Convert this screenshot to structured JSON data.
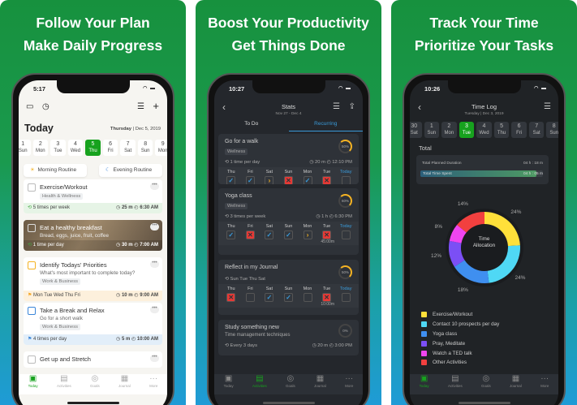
{
  "panels": [
    {
      "headline": [
        "Follow Your Plan",
        "Make Daily Progress"
      ],
      "status_time": "5:17",
      "page_title": "Today",
      "date_bold": "Thursday",
      "date_rest": " | Dec 5, 2019",
      "days": [
        {
          "num": "1",
          "wd": "Sun"
        },
        {
          "num": "2",
          "wd": "Mon"
        },
        {
          "num": "3",
          "wd": "Tue"
        },
        {
          "num": "4",
          "wd": "Wed"
        },
        {
          "num": "5",
          "wd": "Thu",
          "selected": true
        },
        {
          "num": "6",
          "wd": "Fri"
        },
        {
          "num": "7",
          "wd": "Sat"
        },
        {
          "num": "8",
          "wd": "Sun"
        },
        {
          "num": "9",
          "wd": "Mon"
        }
      ],
      "routines": {
        "morning": "Morning Routine",
        "evening": "Evening Routine"
      },
      "tasks": [
        {
          "title": "Exercise/Workout",
          "subtitle": "",
          "tag": "Health & Wellness",
          "repeat": "5 times per week",
          "duration": "25 m",
          "time": "6:30 AM",
          "accent": "#e6f4e6",
          "icon": "repeat-icon",
          "check_color": "#bbbbbb"
        },
        {
          "title": "Eat a healthy breakfast",
          "subtitle": "Bread, eggs, juice, fruit, coffee",
          "tag": "",
          "repeat": "1 time per day",
          "duration": "30 m",
          "time": "7:00 AM",
          "accent": "image",
          "icon": "repeat-icon",
          "check_color": "#dddddd"
        },
        {
          "title": "Identify Todays' Priorities",
          "subtitle": "What's most important to complete today?",
          "tag": "Work & Business",
          "repeat": "Mon Tue Wed Thu Fri",
          "duration": "10 m",
          "time": "9:00 AM",
          "accent": "#fdf0dc",
          "icon": "flag-icon",
          "check_color": "#f5b323"
        },
        {
          "title": "Take a Break and Relax",
          "subtitle": "Go for a short walk",
          "tag": "Work & Business",
          "repeat": "4 times per day",
          "duration": "5 m",
          "time": "10:00 AM",
          "accent": "#e2eef9",
          "icon": "flag-icon",
          "check_color": "#3a86d9"
        },
        {
          "title": "Get up and Stretch",
          "subtitle": "",
          "tag": "",
          "repeat": "",
          "duration": "",
          "time": "",
          "accent": "",
          "icon": "",
          "check_color": "#bbbbbb"
        }
      ],
      "tabs": [
        {
          "label": "Today",
          "icon": "calendar-check-icon",
          "active": true
        },
        {
          "label": "Activities",
          "icon": "list-icon"
        },
        {
          "label": "Goals",
          "icon": "target-icon"
        },
        {
          "label": "Journal",
          "icon": "journal-icon"
        },
        {
          "label": "More",
          "icon": "more-icon"
        }
      ]
    },
    {
      "headline": [
        "Boost Your Productivity",
        "Get Things Done"
      ],
      "status_time": "10:27",
      "title": "Stats",
      "subtitle": "Nov 27 - Dec 4",
      "segments": [
        {
          "label": "To Do"
        },
        {
          "label": "Recurring",
          "active": true
        }
      ],
      "day_labels": [
        "Thu",
        "Fri",
        "Sat",
        "Sun",
        "Mon",
        "Tue",
        "Today"
      ],
      "cards": [
        {
          "title": "Go for a walk",
          "subtitle": "",
          "tag": "Wellness",
          "progress": "50%",
          "repeat": "1 time per day",
          "duration": "20 m",
          "time": "12:10 PM",
          "marks": [
            "check",
            "check",
            "skip",
            "x",
            "check",
            "x",
            "empty"
          ],
          "note": ""
        },
        {
          "title": "Yoga class",
          "subtitle": "",
          "tag": "Wellness",
          "progress": "60%",
          "repeat": "3 times per week",
          "duration": "1 h",
          "time": "6:30 PM",
          "marks": [
            "check",
            "x",
            "check",
            "check",
            "skip",
            "x",
            "empty"
          ],
          "note": "45:00m"
        },
        {
          "title": "Reflect in my Journal",
          "subtitle": "",
          "tag": "",
          "progress": "50%",
          "repeat": "Sun Tue Thu Sat",
          "duration": "",
          "time": "",
          "marks": [
            "x",
            "empty",
            "check",
            "check",
            "empty",
            "x",
            "empty"
          ],
          "note": "10:00m"
        },
        {
          "title": "Study something new",
          "subtitle": "Time management techniques",
          "tag": "",
          "progress": "0%",
          "repeat": "Every 3 days",
          "duration": "20 m",
          "time": "3:00 PM",
          "marks": [],
          "note": ""
        }
      ],
      "tabs": [
        {
          "label": "Today",
          "icon": "calendar-check-icon"
        },
        {
          "label": "Activities",
          "icon": "list-icon",
          "active": true
        },
        {
          "label": "Goals",
          "icon": "target-icon"
        },
        {
          "label": "Journal",
          "icon": "journal-icon"
        },
        {
          "label": "More",
          "icon": "more-icon"
        }
      ]
    },
    {
      "headline": [
        "Track Your Time",
        "Prioritize Your Tasks"
      ],
      "status_time": "10:26",
      "title": "Time Log",
      "subtitle": "Tuesday | Dec 3, 2019",
      "days": [
        {
          "num": "30",
          "wd": "Sat"
        },
        {
          "num": "1",
          "wd": "Sun"
        },
        {
          "num": "2",
          "wd": "Mon"
        },
        {
          "num": "3",
          "wd": "Tue",
          "selected": true
        },
        {
          "num": "4",
          "wd": "Wed"
        },
        {
          "num": "5",
          "wd": "Thu"
        },
        {
          "num": "6",
          "wd": "Fri"
        },
        {
          "num": "7",
          "wd": "Sat"
        },
        {
          "num": "8",
          "wd": "Sun"
        }
      ],
      "total_label": "Total",
      "planned": {
        "label": "Total Planned Duration",
        "value": "04 h : 18 m"
      },
      "spent": {
        "label": "Total Time Spent",
        "value": "04 h : 05 m",
        "fraction": 0.95
      },
      "donut_center": [
        "Time",
        "Allocation"
      ],
      "chart_data": {
        "type": "pie",
        "donut": true,
        "slices": [
          {
            "name": "Exercise/Workout",
            "value": 24,
            "label": "24%",
            "color": "#ffe03a"
          },
          {
            "name": "Contact 10 prospects per day",
            "value": 24,
            "label": "24%",
            "color": "#4fd8f5"
          },
          {
            "name": "Yoga class",
            "value": 18,
            "label": "18%",
            "color": "#3f8ff0"
          },
          {
            "name": "Pray, Meditate",
            "value": 12,
            "label": "12%",
            "color": "#7b4ff5"
          },
          {
            "name": "Watch a TED talk",
            "value": 8,
            "label": "8%",
            "color": "#f045f0"
          },
          {
            "name": "Other Activities",
            "value": 14,
            "label": "14%",
            "color": "#f2403f"
          }
        ]
      },
      "tabs": [
        {
          "label": "Today",
          "icon": "calendar-check-icon",
          "active": true
        },
        {
          "label": "Activities",
          "icon": "list-icon"
        },
        {
          "label": "Goals",
          "icon": "target-icon"
        },
        {
          "label": "Journal",
          "icon": "journal-icon"
        },
        {
          "label": "More",
          "icon": "more-icon"
        }
      ]
    }
  ]
}
